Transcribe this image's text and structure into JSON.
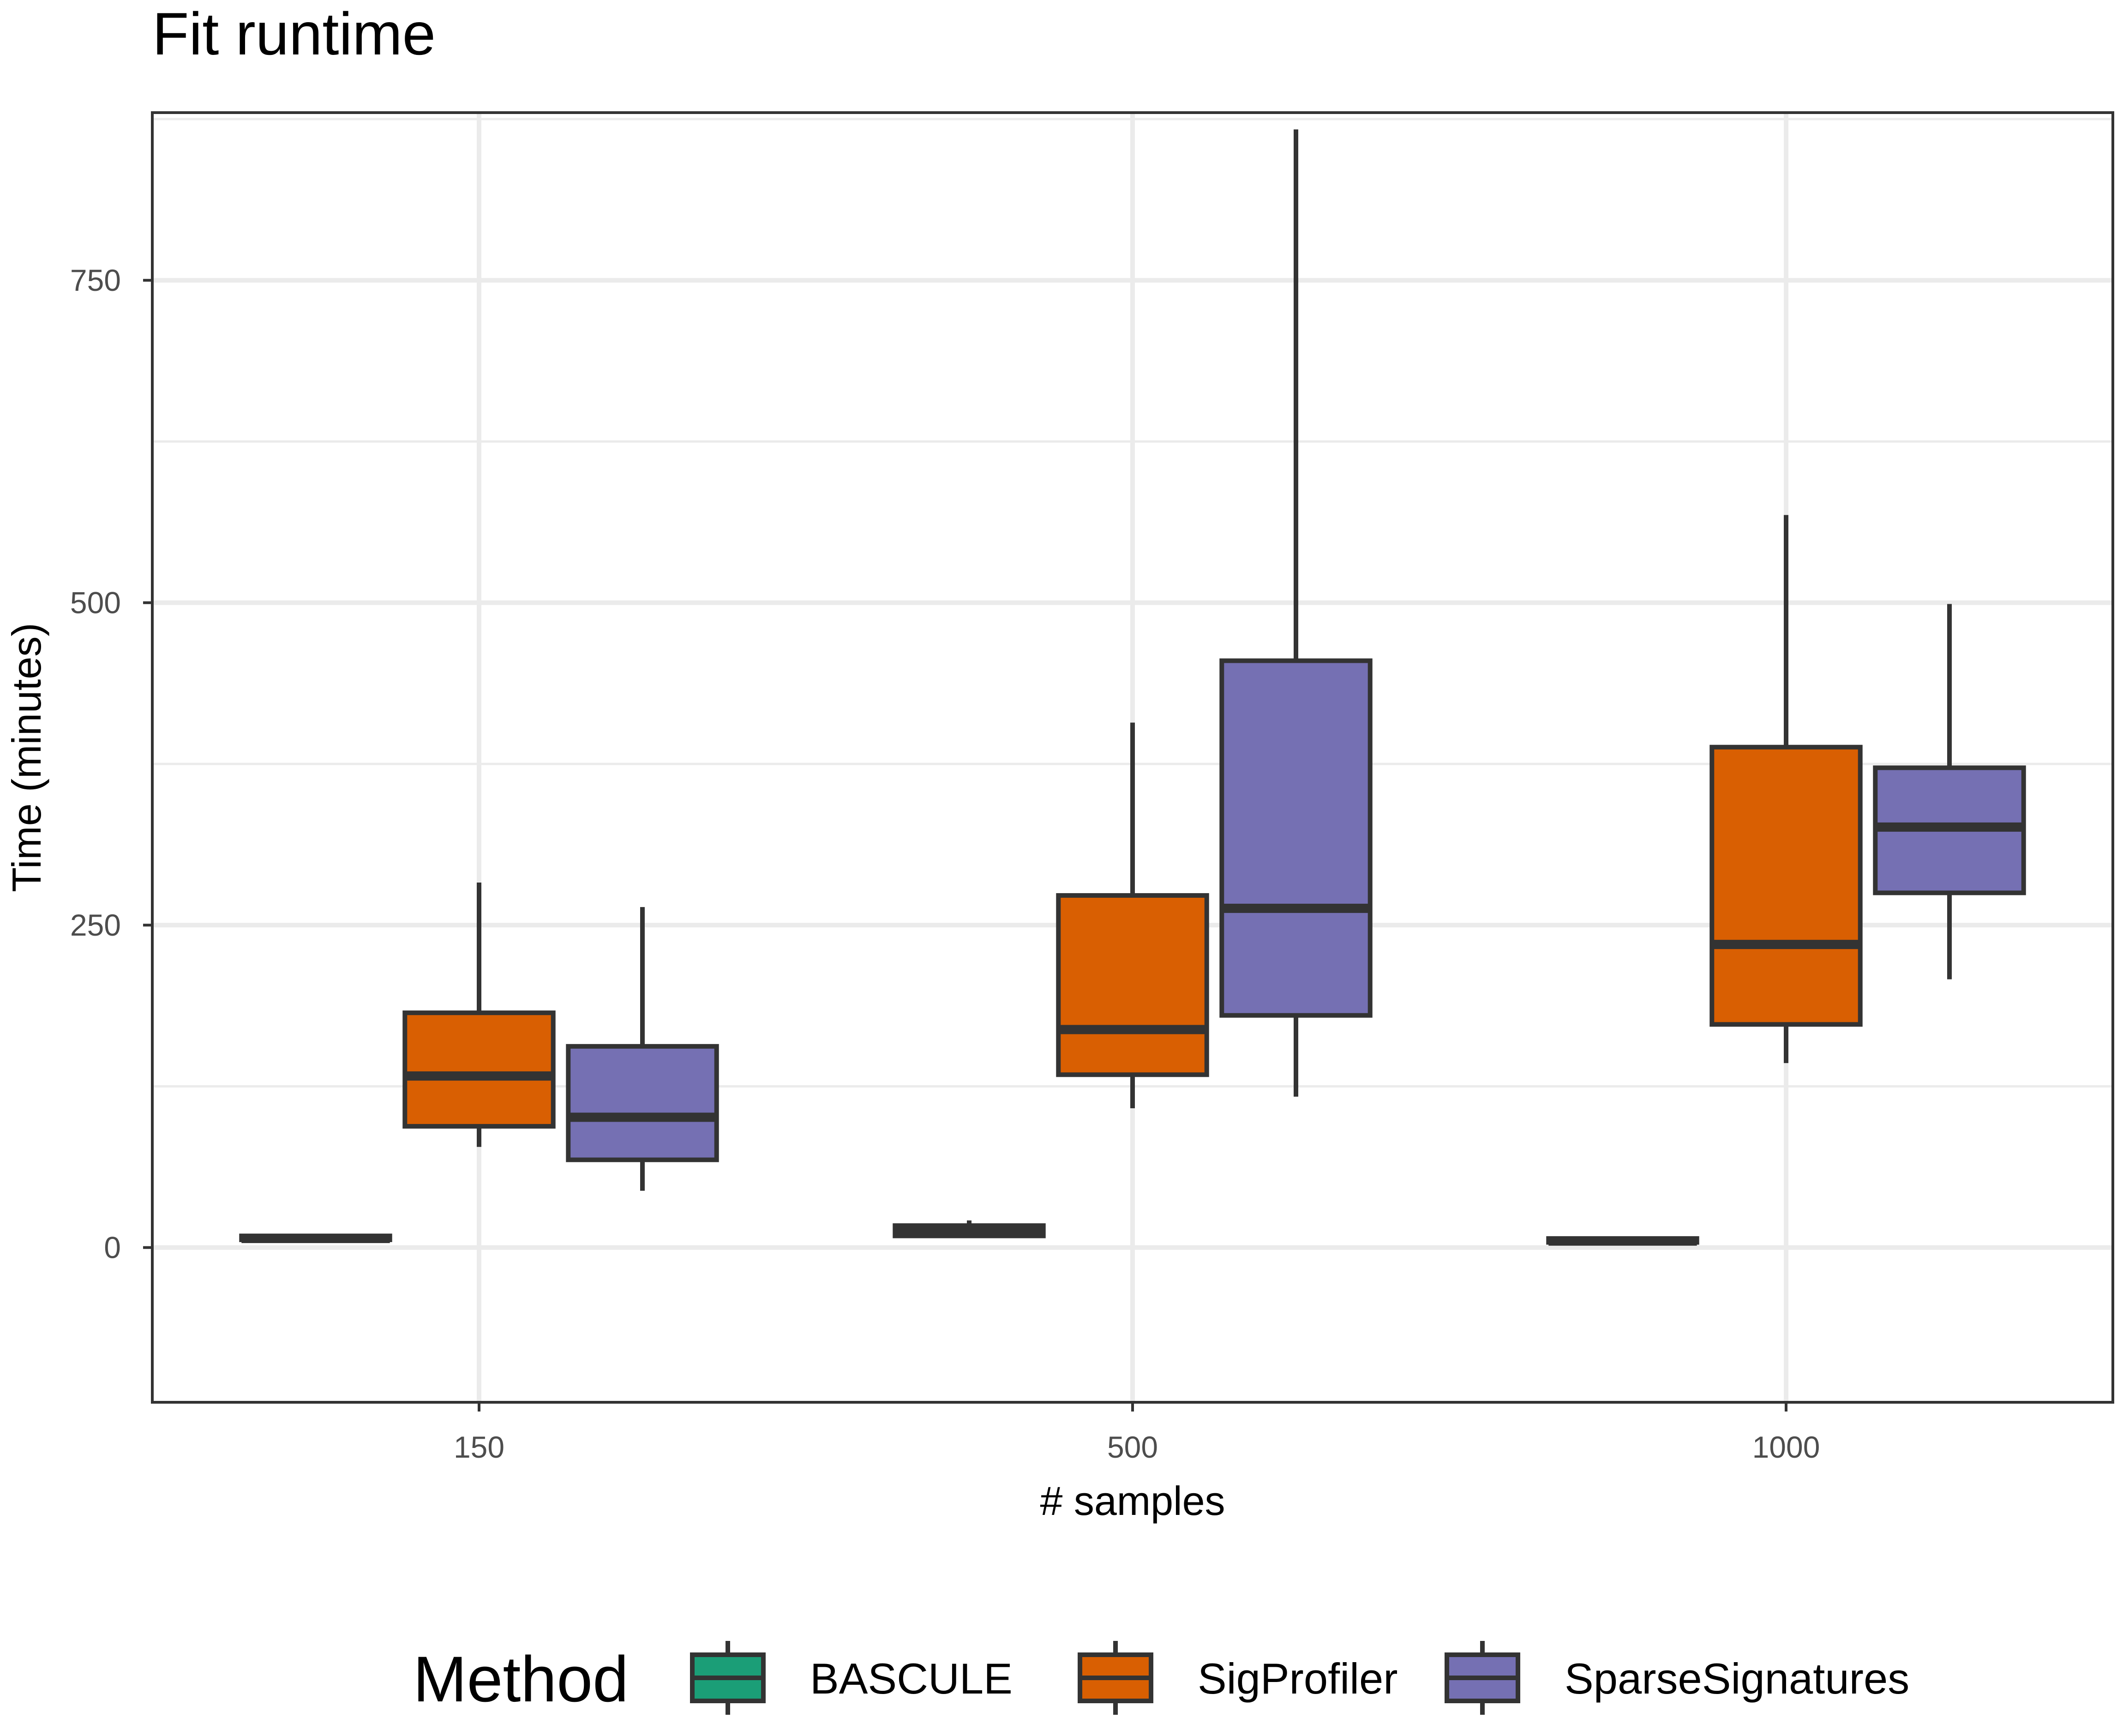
{
  "chart_data": {
    "type": "boxplot",
    "title": "Fit runtime",
    "xlabel": "# samples",
    "ylabel": "Time (minutes)",
    "categories": [
      "150",
      "500",
      "1000"
    ],
    "ylim": [
      -120,
      880
    ],
    "yticks": [
      0,
      250,
      500,
      750
    ],
    "grid": true,
    "legend": {
      "title": "Method",
      "position": "bottom"
    },
    "series": [
      {
        "name": "BASCULE",
        "color": "#1b9e77",
        "boxes": [
          {
            "category": "150",
            "whisker_low": 6,
            "q1": 6,
            "median": 7,
            "q3": 9,
            "whisker_high": 10
          },
          {
            "category": "500",
            "whisker_low": 9,
            "q1": 9,
            "median": 13,
            "q3": 17,
            "whisker_high": 21
          },
          {
            "category": "1000",
            "whisker_low": 4,
            "q1": 4,
            "median": 5,
            "q3": 7,
            "whisker_high": 8
          }
        ]
      },
      {
        "name": "SigProfiler",
        "color": "#d95f02",
        "boxes": [
          {
            "category": "150",
            "whisker_low": 78,
            "q1": 94,
            "median": 133,
            "q3": 182,
            "whisker_high": 283
          },
          {
            "category": "500",
            "whisker_low": 108,
            "q1": 134,
            "median": 169,
            "q3": 273,
            "whisker_high": 407
          },
          {
            "category": "1000",
            "whisker_low": 143,
            "q1": 173,
            "median": 235,
            "q3": 388,
            "whisker_high": 568
          }
        ]
      },
      {
        "name": "SparseSignatures",
        "color": "#7570b3",
        "boxes": [
          {
            "category": "150",
            "whisker_low": 44,
            "q1": 68,
            "median": 101,
            "q3": 156,
            "whisker_high": 264
          },
          {
            "category": "500",
            "whisker_low": 117,
            "q1": 180,
            "median": 263,
            "q3": 455,
            "whisker_high": 867
          },
          {
            "category": "1000",
            "whisker_low": 208,
            "q1": 275,
            "median": 326,
            "q3": 372,
            "whisker_high": 499
          }
        ]
      }
    ]
  }
}
